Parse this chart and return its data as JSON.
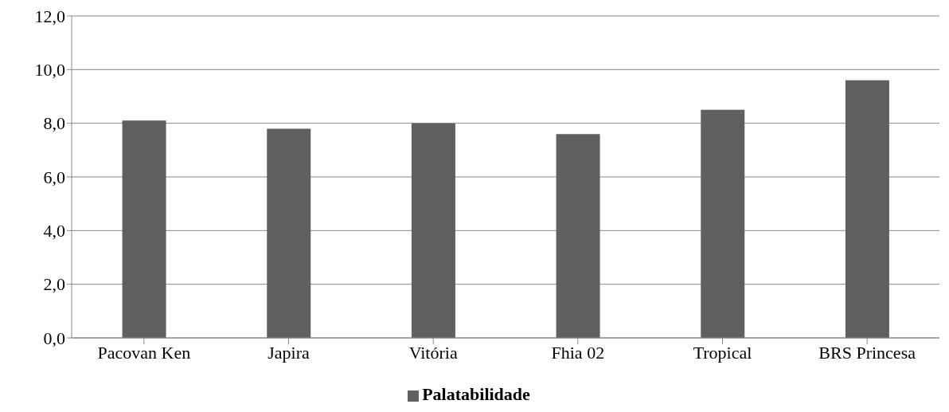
{
  "chart_data": {
    "type": "bar",
    "categories": [
      "Pacovan Ken",
      "Japira",
      "Vitória",
      "Fhia 02",
      "Tropical",
      "BRS Princesa"
    ],
    "series": [
      {
        "name": "Palatabilidade",
        "color": "#606060",
        "values": [
          8.1,
          7.8,
          8.0,
          7.6,
          8.5,
          9.6
        ]
      }
    ],
    "ylim": [
      0,
      12
    ],
    "yticks": [
      {
        "value": 0,
        "label": "0,0"
      },
      {
        "value": 2,
        "label": "2,0"
      },
      {
        "value": 4,
        "label": "4,0"
      },
      {
        "value": 6,
        "label": "6,0"
      },
      {
        "value": 8,
        "label": "8,0"
      },
      {
        "value": 10,
        "label": "10,0"
      },
      {
        "value": 12,
        "label": "12,0"
      }
    ],
    "grid": "y",
    "legend": "bottom"
  }
}
